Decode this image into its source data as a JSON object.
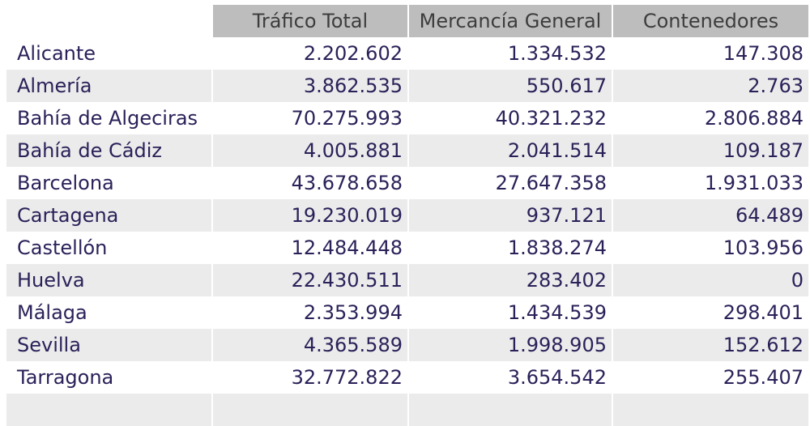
{
  "table": {
    "columns": [
      "",
      "Tráfico Total",
      "Mercancía General",
      "Contenedores"
    ],
    "rows": [
      {
        "port": "Alicante",
        "total": "2.202.602",
        "mercancia": "1.334.532",
        "contenedores": "147.308"
      },
      {
        "port": "Almería",
        "total": "3.862.535",
        "mercancia": "550.617",
        "contenedores": "2.763"
      },
      {
        "port": "Bahía de Algeciras",
        "total": "70.275.993",
        "mercancia": "40.321.232",
        "contenedores": "2.806.884"
      },
      {
        "port": "Bahía de Cádiz",
        "total": "4.005.881",
        "mercancia": "2.041.514",
        "contenedores": "109.187"
      },
      {
        "port": "Barcelona",
        "total": "43.678.658",
        "mercancia": "27.647.358",
        "contenedores": "1.931.033"
      },
      {
        "port": "Cartagena",
        "total": "19.230.019",
        "mercancia": "937.121",
        "contenedores": "64.489"
      },
      {
        "port": "Castellón",
        "total": "12.484.448",
        "mercancia": "1.838.274",
        "contenedores": "103.956"
      },
      {
        "port": "Huelva",
        "total": "22.430.511",
        "mercancia": "283.402",
        "contenedores": "0"
      },
      {
        "port": "Málaga",
        "total": "2.353.994",
        "mercancia": "1.434.539",
        "contenedores": "298.401"
      },
      {
        "port": "Sevilla",
        "total": "4.365.589",
        "mercancia": "1.998.905",
        "contenedores": "152.612"
      },
      {
        "port": "Tarragona",
        "total": "32.772.822",
        "mercancia": "3.654.542",
        "contenedores": "255.407"
      }
    ]
  },
  "colors": {
    "header_bg": "#bdbdbd",
    "header_text": "#3d3d3d",
    "row_text": "#2b2159",
    "alt_row_bg": "#ebebeb"
  }
}
